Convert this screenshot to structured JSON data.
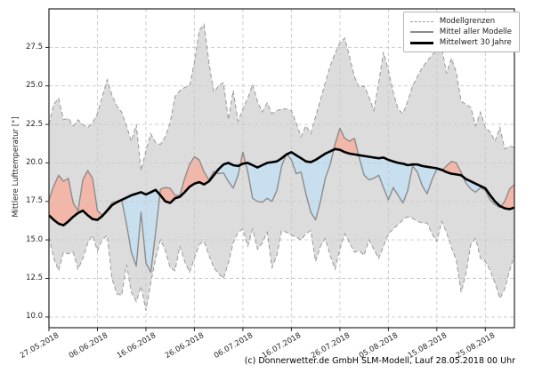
{
  "figure": {
    "caption": "(c) Donnerwetter.de GmbH SLM-Modell, Lauf 28.05.2018 00 Uhr"
  },
  "legend": {
    "items": [
      {
        "label": "Modellgrenzen",
        "sample": "dashed-gray-line"
      },
      {
        "label": "Mittel aller Modelle",
        "sample": "solid-gray-line"
      },
      {
        "label": "Mittelwert 30 Jahre",
        "sample": "solid-black-line"
      }
    ]
  },
  "chart_data": {
    "type": "line",
    "title": "",
    "ylabel": "Mittlere Lufttemperatur [°]",
    "xlabel": "",
    "ylim": [
      9.3,
      30.0
    ],
    "grid": true,
    "legend_position": "upper right",
    "y_ticks": [
      10.0,
      12.5,
      15.0,
      17.5,
      20.0,
      22.5,
      25.0,
      27.5
    ],
    "y_tick_labels": [
      "10.0",
      "12.5",
      "15.0",
      "17.5",
      "20.0",
      "22.5",
      "25.0",
      "27.5"
    ],
    "x_tick_labels": [
      "27.05.2018",
      "06.06.2018",
      "16.06.2018",
      "26.06.2018",
      "06.07.2018",
      "16.07.2018",
      "26.07.2018",
      "05.08.2018",
      "15.08.2018",
      "25.08.2018"
    ],
    "x_tick_days": [
      0,
      10,
      20,
      30,
      40,
      50,
      60,
      70,
      80,
      90
    ],
    "days_total": 96,
    "colors": {
      "band_fill": "#dcdcdc",
      "band_edge": "#999999",
      "warm_fill": "#f3b7a9",
      "cool_fill": "#c7dfee",
      "model_mean_line": "#8c8c8c",
      "mean_30y_line": "#000000",
      "grid": "#c9c9c9",
      "spine": "#262626"
    },
    "series": [
      {
        "name": "model_max",
        "legend": "Modellgrenzen",
        "values": [
          22.5,
          23.8,
          24.2,
          22.8,
          22.9,
          22.4,
          22.8,
          22.5,
          22.3,
          22.6,
          23.2,
          24.3,
          25.4,
          24.4,
          23.7,
          23.3,
          22.4,
          21.4,
          22.5,
          19.5,
          20.8,
          21.9,
          21.3,
          21.2,
          21.7,
          22.6,
          24.3,
          24.7,
          24.9,
          25.0,
          26.5,
          28.6,
          29.0,
          26.5,
          24.6,
          25.0,
          25.2,
          22.8,
          24.7,
          22.7,
          23.5,
          24.2,
          25.1,
          24.0,
          23.3,
          23.9,
          23.2,
          23.4,
          23.5,
          23.5,
          23.4,
          22.6,
          21.7,
          22.4,
          21.9,
          23.0,
          24.1,
          25.2,
          26.3,
          27.1,
          27.8,
          28.1,
          26.9,
          25.6,
          24.9,
          25.0,
          24.3,
          23.4,
          25.2,
          27.2,
          26.0,
          24.6,
          23.5,
          23.2,
          24.0,
          25.0,
          25.6,
          26.2,
          26.6,
          27.0,
          27.3,
          27.5,
          25.8,
          26.8,
          25.9,
          24.0,
          23.8,
          23.6,
          22.4,
          23.3,
          22.3,
          22.0,
          21.4,
          22.3,
          20.9,
          21.1,
          21.0
        ]
      },
      {
        "name": "model_min",
        "legend": "Modellgrenzen",
        "values": [
          15.2,
          13.8,
          13.0,
          14.2,
          14.1,
          14.2,
          13.1,
          13.8,
          14.8,
          15.3,
          14.3,
          15.0,
          15.3,
          12.5,
          11.5,
          11.4,
          13.4,
          11.6,
          11.0,
          12.0,
          10.4,
          12.2,
          13.8,
          15.0,
          14.3,
          13.2,
          13.0,
          14.6,
          13.6,
          12.9,
          13.8,
          14.7,
          14.9,
          14.0,
          13.2,
          12.8,
          12.5,
          13.5,
          14.8,
          15.5,
          15.7,
          14.6,
          15.7,
          14.4,
          14.8,
          15.5,
          13.2,
          14.0,
          15.6,
          15.5,
          15.3,
          15.2,
          15.0,
          15.4,
          15.6,
          13.6,
          14.6,
          15.1,
          14.0,
          13.1,
          14.4,
          15.4,
          14.8,
          14.2,
          14.3,
          14.0,
          15.0,
          14.4,
          13.8,
          14.6,
          15.4,
          15.7,
          16.0,
          16.3,
          16.5,
          16.4,
          16.2,
          16.1,
          16.1,
          15.4,
          14.9,
          16.2,
          15.5,
          14.5,
          13.7,
          11.6,
          12.8,
          14.7,
          15.1,
          13.8,
          13.6,
          13.0,
          12.2,
          11.2,
          11.8,
          13.0,
          14.0
        ]
      },
      {
        "name": "model_mean",
        "legend": "Mittel aller Modelle",
        "values": [
          17.6,
          18.5,
          19.2,
          18.8,
          19.0,
          17.4,
          16.9,
          18.9,
          19.5,
          19.0,
          16.9,
          16.6,
          17.0,
          17.4,
          17.5,
          17.6,
          16.0,
          14.2,
          13.3,
          16.8,
          13.5,
          12.9,
          15.5,
          18.3,
          18.4,
          18.35,
          17.9,
          17.9,
          19.0,
          19.9,
          20.4,
          20.2,
          19.4,
          18.9,
          19.45,
          19.3,
          19.35,
          18.8,
          18.35,
          19.2,
          20.7,
          19.4,
          17.7,
          17.5,
          17.45,
          17.7,
          17.5,
          18.2,
          19.8,
          20.6,
          20.2,
          19.3,
          19.4,
          18.0,
          16.8,
          16.3,
          17.5,
          19.0,
          19.9,
          21.2,
          22.25,
          21.6,
          21.4,
          21.6,
          20.3,
          19.2,
          18.9,
          19.0,
          19.2,
          18.4,
          17.6,
          18.4,
          17.9,
          17.4,
          18.2,
          19.8,
          19.4,
          18.5,
          18.0,
          18.9,
          19.6,
          19.5,
          19.8,
          20.1,
          20.0,
          19.4,
          18.7,
          18.3,
          18.1,
          18.4,
          18.2,
          17.6,
          17.3,
          17.1,
          17.5,
          18.3,
          18.6
        ]
      },
      {
        "name": "mean_30y",
        "legend": "Mittelwert 30 Jahre",
        "values": [
          16.6,
          16.3,
          16.05,
          15.95,
          16.2,
          16.5,
          16.75,
          16.9,
          16.6,
          16.35,
          16.3,
          16.55,
          16.9,
          17.25,
          17.45,
          17.6,
          17.75,
          17.9,
          18.0,
          18.1,
          17.95,
          18.1,
          18.25,
          17.9,
          17.5,
          17.4,
          17.7,
          17.8,
          18.1,
          18.45,
          18.65,
          18.75,
          18.6,
          18.8,
          19.2,
          19.6,
          19.9,
          20.0,
          19.85,
          19.8,
          19.95,
          20.0,
          19.85,
          19.7,
          19.85,
          20.0,
          20.05,
          20.1,
          20.3,
          20.55,
          20.7,
          20.5,
          20.3,
          20.1,
          20.05,
          20.2,
          20.4,
          20.6,
          20.75,
          20.9,
          20.85,
          20.7,
          20.6,
          20.55,
          20.5,
          20.45,
          20.4,
          20.35,
          20.3,
          20.35,
          20.2,
          20.1,
          20.0,
          19.95,
          19.85,
          19.9,
          19.9,
          19.8,
          19.75,
          19.7,
          19.65,
          19.55,
          19.4,
          19.3,
          19.25,
          19.2,
          18.95,
          18.8,
          18.65,
          18.5,
          18.35,
          17.9,
          17.5,
          17.2,
          17.05,
          17.0,
          17.1
        ]
      }
    ]
  }
}
